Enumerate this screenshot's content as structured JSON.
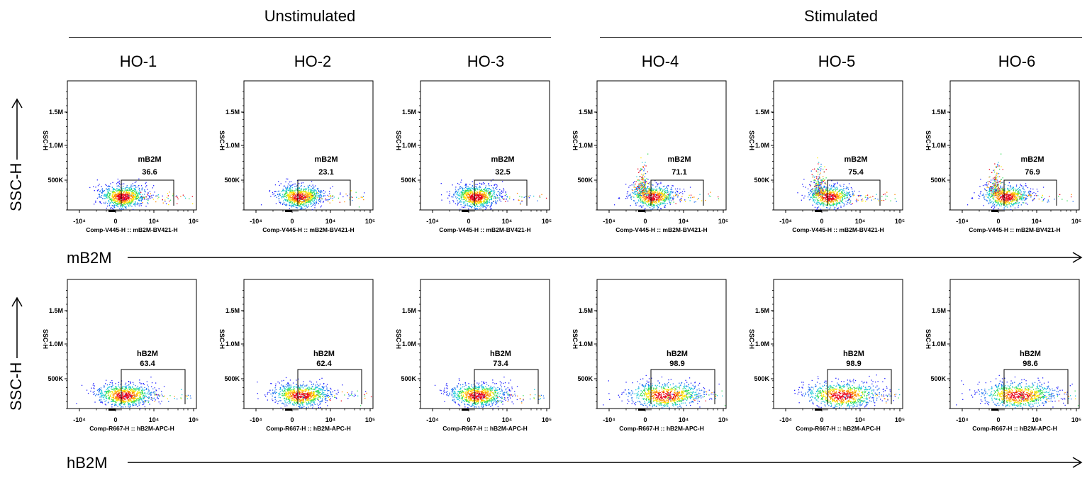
{
  "groups": [
    {
      "label": "Unstimulated"
    },
    {
      "label": "Stimulated"
    }
  ],
  "columns": [
    "HO-1",
    "HO-2",
    "HO-3",
    "HO-4",
    "HO-5",
    "HO-6"
  ],
  "rows": [
    {
      "ylabel": "SSC-H",
      "xlabel": "mB2M"
    },
    {
      "ylabel": "SSC-H",
      "xlabel": "hB2M"
    }
  ],
  "chart_data": [
    {
      "type": "scatter",
      "row": "mB2M",
      "x_axis_label": "Comp-V445-H :: mB2M-BV421-H",
      "y_axis_label": "SSC-H",
      "y_ticks": [
        "500K",
        "1.0M",
        "1.5M"
      ],
      "x_ticks": [
        "-10⁴",
        "0",
        "10⁴",
        "10⁵"
      ],
      "gate_label": "mB2M",
      "panels": [
        {
          "sample": "HO-1",
          "gate_percent": 36.6
        },
        {
          "sample": "HO-2",
          "gate_percent": 23.1
        },
        {
          "sample": "HO-3",
          "gate_percent": 32.5
        },
        {
          "sample": "HO-4",
          "gate_percent": 71.1
        },
        {
          "sample": "HO-5",
          "gate_percent": 75.4
        },
        {
          "sample": "HO-6",
          "gate_percent": 76.9
        }
      ]
    },
    {
      "type": "scatter",
      "row": "hB2M",
      "x_axis_label": "Comp-R667-H :: hB2M-APC-H",
      "y_axis_label": "SSC-H",
      "y_ticks": [
        "500K",
        "1.0M",
        "1.5M"
      ],
      "x_ticks": [
        "-10⁴",
        "0",
        "10⁴",
        "10⁵"
      ],
      "gate_label": "hB2M",
      "panels": [
        {
          "sample": "HO-1",
          "gate_percent": 63.4
        },
        {
          "sample": "HO-2",
          "gate_percent": 62.4
        },
        {
          "sample": "HO-3",
          "gate_percent": 73.4
        },
        {
          "sample": "HO-4",
          "gate_percent": 98.9
        },
        {
          "sample": "HO-5",
          "gate_percent": 98.9
        },
        {
          "sample": "HO-6",
          "gate_percent": 98.6
        }
      ]
    }
  ]
}
